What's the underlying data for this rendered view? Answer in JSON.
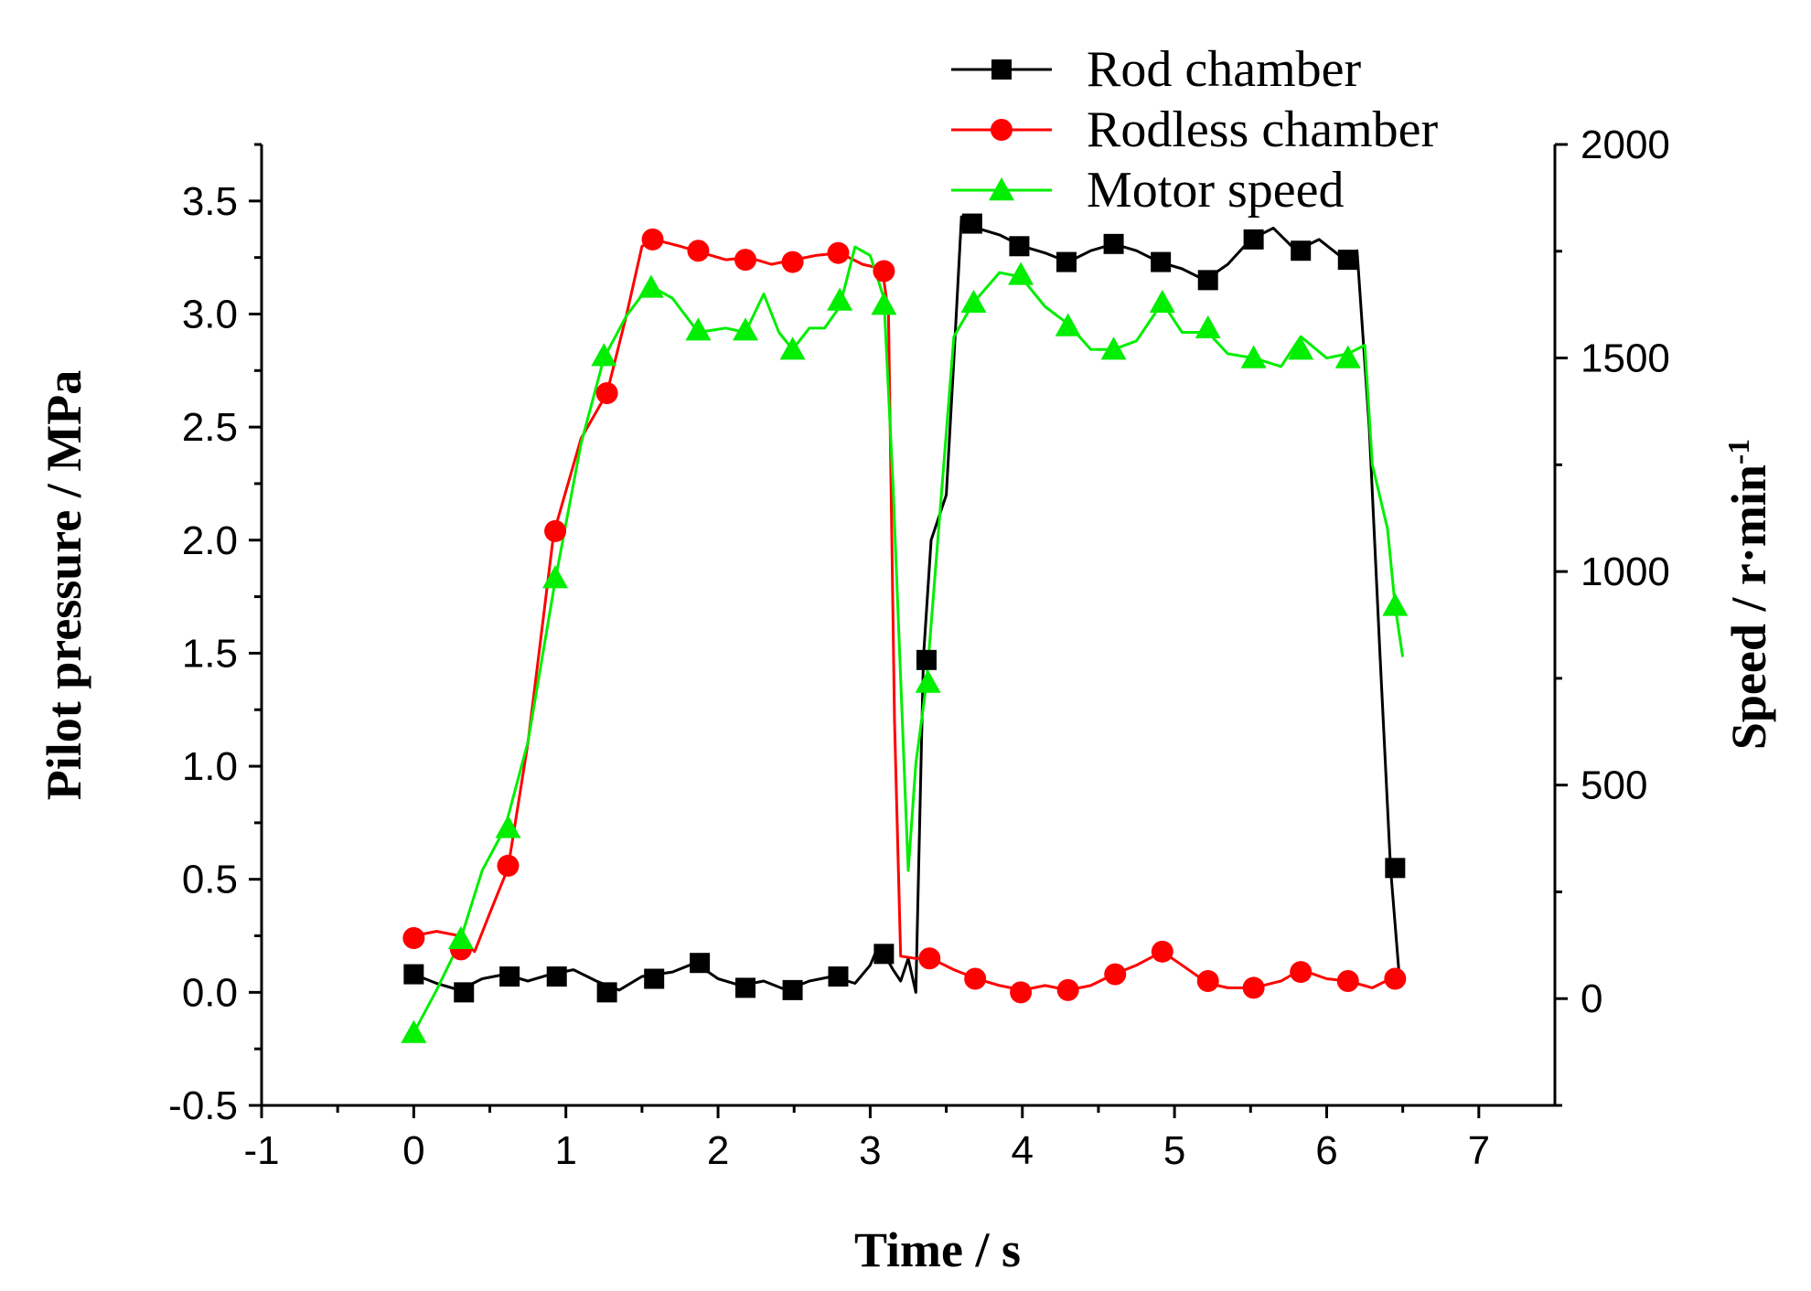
{
  "chart_data": {
    "type": "line",
    "title": "",
    "xlabel": "Time / s",
    "ylabel_left": "Pilot pressure  / MPa",
    "ylabel_right": "Speed  / r·min",
    "ylabel_right_superscript": "-1",
    "xlim": [
      -1,
      7.5
    ],
    "ylim_left": [
      -0.5,
      3.75
    ],
    "ylim_right": [
      -250,
      2000
    ],
    "x_ticks": [
      "-1",
      "0",
      "1",
      "2",
      "3",
      "4",
      "5",
      "6",
      "7"
    ],
    "y_left_ticks": [
      "-0.5",
      "0.0",
      "0.5",
      "1.0",
      "1.5",
      "2.0",
      "2.5",
      "3.0",
      "3.5"
    ],
    "y_right_ticks": [
      "0",
      "500",
      "1000",
      "1500",
      "2000"
    ],
    "legend_position": "top-right",
    "series": [
      {
        "name": "Rod chamber",
        "axis": "left",
        "color": "#000000",
        "marker": "square",
        "x": [
          0,
          0.15,
          0.3,
          0.45,
          0.6,
          0.75,
          0.9,
          1.05,
          1.2,
          1.35,
          1.5,
          1.7,
          1.85,
          2.0,
          2.15,
          2.3,
          2.45,
          2.6,
          2.75,
          2.9,
          3.0,
          3.05,
          3.1,
          3.15,
          3.2,
          3.25,
          3.3,
          3.35,
          3.4,
          3.45,
          3.5,
          3.55,
          3.6,
          3.7,
          3.85,
          4.0,
          4.15,
          4.3,
          4.45,
          4.6,
          4.75,
          4.9,
          5.05,
          5.2,
          5.35,
          5.5,
          5.65,
          5.8,
          5.95,
          6.1,
          6.2,
          6.28,
          6.35,
          6.42,
          6.48
        ],
        "values": [
          0.08,
          0.04,
          0.01,
          0.06,
          0.08,
          0.05,
          0.08,
          0.1,
          0.05,
          0.01,
          0.07,
          0.09,
          0.13,
          0.06,
          0.03,
          0.05,
          0.01,
          0.05,
          0.07,
          0.04,
          0.12,
          0.2,
          0.16,
          0.1,
          0.05,
          0.15,
          0.0,
          1.48,
          2.0,
          2.1,
          2.2,
          2.8,
          3.43,
          3.38,
          3.35,
          3.3,
          3.27,
          3.23,
          3.28,
          3.31,
          3.28,
          3.23,
          3.2,
          3.15,
          3.22,
          3.33,
          3.38,
          3.28,
          3.33,
          3.25,
          3.28,
          2.5,
          1.5,
          0.55,
          0.05
        ],
        "marker_x": [
          0.0,
          0.33,
          0.63,
          0.94,
          1.27,
          1.58,
          1.88,
          2.18,
          2.49,
          2.79,
          3.09,
          3.37,
          3.67,
          3.98,
          4.29,
          4.6,
          4.91,
          5.22,
          5.52,
          5.83,
          6.14,
          6.45
        ],
        "marker_values": [
          0.08,
          0.0,
          0.07,
          0.07,
          0.0,
          0.06,
          0.13,
          0.02,
          0.01,
          0.07,
          0.17,
          1.47,
          3.4,
          3.3,
          3.23,
          3.31,
          3.23,
          3.15,
          3.33,
          3.28,
          3.24,
          0.55
        ]
      },
      {
        "name": "Rodless chamber",
        "axis": "left",
        "color": "#ff0000",
        "marker": "circle",
        "x": [
          0,
          0.15,
          0.3,
          0.4,
          0.5,
          0.62,
          0.75,
          0.92,
          1.1,
          1.27,
          1.4,
          1.5,
          1.58,
          1.75,
          1.9,
          2.05,
          2.2,
          2.35,
          2.5,
          2.65,
          2.8,
          2.95,
          3.08,
          3.12,
          3.16,
          3.2,
          3.3,
          3.4,
          3.55,
          3.7,
          3.85,
          4.0,
          4.15,
          4.3,
          4.45,
          4.6,
          4.75,
          4.92,
          5.05,
          5.22,
          5.35,
          5.52,
          5.7,
          5.83,
          6.0,
          6.14,
          6.3,
          6.45
        ],
        "values": [
          0.25,
          0.27,
          0.25,
          0.18,
          0.35,
          0.55,
          1.1,
          2.03,
          2.45,
          2.65,
          3.0,
          3.3,
          3.33,
          3.3,
          3.27,
          3.24,
          3.25,
          3.22,
          3.24,
          3.26,
          3.27,
          3.22,
          3.2,
          3.0,
          1.2,
          0.16,
          0.15,
          0.15,
          0.1,
          0.06,
          0.03,
          0.01,
          0.03,
          0.01,
          0.03,
          0.08,
          0.12,
          0.18,
          0.12,
          0.04,
          0.02,
          0.02,
          0.05,
          0.1,
          0.06,
          0.05,
          0.02,
          0.07
        ],
        "marker_x": [
          0.0,
          0.31,
          0.62,
          0.93,
          1.27,
          1.57,
          1.87,
          2.18,
          2.49,
          2.79,
          3.09,
          3.39,
          3.69,
          3.99,
          4.3,
          4.61,
          4.92,
          5.22,
          5.52,
          5.83,
          6.14,
          6.45
        ],
        "marker_values": [
          0.24,
          0.19,
          0.56,
          2.04,
          2.65,
          3.33,
          3.28,
          3.24,
          3.23,
          3.27,
          3.19,
          0.15,
          0.06,
          0.0,
          0.01,
          0.08,
          0.18,
          0.05,
          0.02,
          0.09,
          0.05,
          0.06
        ]
      },
      {
        "name": "Motor speed",
        "axis": "right",
        "color": "#00ee00",
        "marker": "triangle",
        "x": [
          0,
          0.15,
          0.3,
          0.45,
          0.6,
          0.75,
          0.93,
          1.1,
          1.25,
          1.4,
          1.55,
          1.7,
          1.87,
          2.05,
          2.18,
          2.3,
          2.4,
          2.49,
          2.6,
          2.7,
          2.8,
          2.9,
          3.0,
          3.09,
          3.15,
          3.25,
          3.3,
          3.37,
          3.45,
          3.55,
          3.68,
          3.85,
          3.99,
          4.15,
          4.3,
          4.45,
          4.6,
          4.75,
          4.92,
          5.05,
          5.22,
          5.35,
          5.52,
          5.7,
          5.83,
          6.0,
          6.14,
          6.25,
          6.3,
          6.4,
          6.45,
          6.5
        ],
        "values": [
          -80,
          20,
          130,
          300,
          400,
          600,
          980,
          1300,
          1500,
          1600,
          1670,
          1640,
          1560,
          1570,
          1560,
          1650,
          1560,
          1520,
          1570,
          1570,
          1620,
          1760,
          1740,
          1640,
          1200,
          300,
          550,
          740,
          1100,
          1550,
          1630,
          1700,
          1690,
          1620,
          1580,
          1520,
          1520,
          1540,
          1630,
          1560,
          1560,
          1510,
          1500,
          1480,
          1550,
          1500,
          1510,
          1530,
          1250,
          1100,
          920,
          800
        ],
        "marker_x": [
          0.0,
          0.31,
          0.62,
          0.93,
          1.25,
          1.56,
          1.87,
          2.18,
          2.49,
          2.8,
          3.09,
          3.38,
          3.68,
          3.99,
          4.3,
          4.6,
          4.92,
          5.22,
          5.52,
          5.83,
          6.14,
          6.45
        ],
        "marker_values": [
          -80,
          140,
          400,
          985,
          1505,
          1665,
          1565,
          1565,
          1520,
          1635,
          1625,
          740,
          1630,
          1695,
          1575,
          1520,
          1630,
          1570,
          1500,
          1520,
          1500,
          920
        ]
      }
    ]
  }
}
